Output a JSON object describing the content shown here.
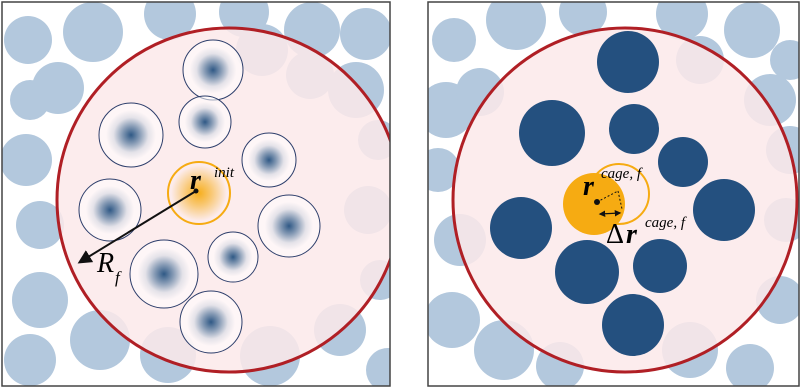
{
  "left_panel": {
    "label_r": "r",
    "label_init": "init",
    "label_R": "R",
    "label_f": "f"
  },
  "right_panel": {
    "label_r": "r",
    "label_cage_top": "cage, f",
    "label_delta": "Δ",
    "label_r2": "r",
    "label_cage_bottom": "cage, f"
  },
  "colors": {
    "background_particle": "#b3c8dd",
    "cage_particle": "#24507f",
    "tagged_particle": "#f6ab12",
    "cutoff_circle": "#b01f25",
    "cutoff_fill": "#fbe9ea",
    "outline": "#2d3e6b"
  }
}
